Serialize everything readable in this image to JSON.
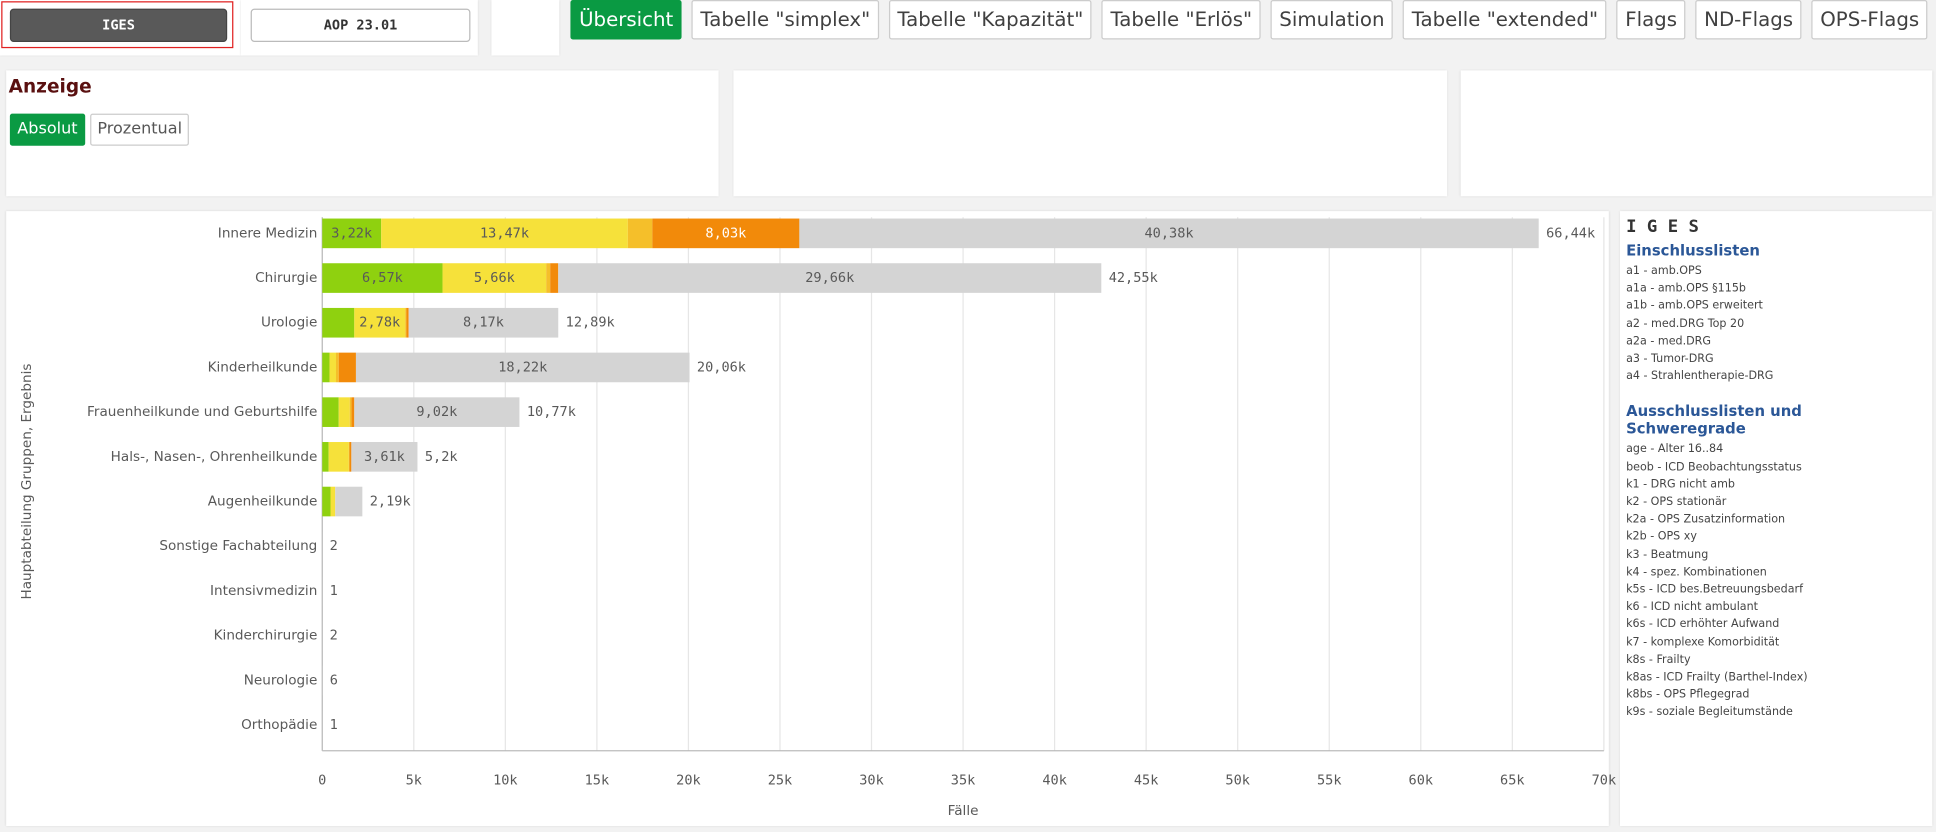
{
  "header": {
    "buttons": [
      "IGES",
      "AOP 23.01"
    ],
    "tabs": [
      "Übersicht",
      "Tabelle \"simplex\"",
      "Tabelle \"Kapazität\"",
      "Tabelle \"Erlös\"",
      "Simulation",
      "Tabelle \"extended\"",
      "Flags",
      "ND-Flags",
      "OPS-Flags"
    ]
  },
  "filter": {
    "title": "Anzeige",
    "options": [
      "Absolut",
      "Prozentual"
    ]
  },
  "chart_data": {
    "type": "stacked-bar-horizontal",
    "x_label": "Fälle",
    "y_label": "Hauptabteilung Gruppen, Ergebnis",
    "categories": [
      "Innere Medizin",
      "Chirurgie",
      "Urologie",
      "Kinderheilkunde",
      "Frauenheilkunde und Geburtshilfe",
      "Hals-, Nasen-, Ohrenheilkunde",
      "Augenheilkunde",
      "Sonstige Fachabteilung",
      "Intensivmedizin",
      "Kinderchirurgie",
      "Neurologie",
      "Orthopädie"
    ],
    "series": [
      {
        "color": "#8fd10f",
        "values": [
          3220,
          6570,
          1750,
          400,
          900,
          350,
          450,
          0,
          0,
          0,
          0,
          0
        ],
        "value_labels": [
          "3,22k",
          "6,57k",
          null,
          null,
          null,
          null,
          null,
          null,
          null,
          null,
          null,
          null
        ]
      },
      {
        "color": "#f6e13a",
        "values": [
          13470,
          5660,
          2780,
          350,
          600,
          1100,
          260,
          0,
          0,
          0,
          0,
          0
        ],
        "value_labels": [
          "13,47k",
          "5,66k",
          "2,78k",
          null,
          null,
          null,
          null,
          null,
          null,
          null,
          null,
          null
        ]
      },
      {
        "color": "#f5bf2a",
        "values": [
          1340,
          220,
          70,
          150,
          100,
          40,
          0,
          0,
          0,
          0,
          0,
          0
        ]
      },
      {
        "color": "#f28a0a",
        "values": [
          8030,
          440,
          120,
          940,
          150,
          100,
          0,
          0,
          0,
          0,
          0,
          0
        ],
        "value_labels": [
          "8,03k",
          null,
          null,
          null,
          null,
          null,
          null,
          null,
          null,
          null,
          null,
          null
        ]
      },
      {
        "color": "#d4d4d4",
        "values": [
          40380,
          29660,
          8170,
          18220,
          9020,
          3610,
          1480,
          2,
          1,
          2,
          6,
          1
        ],
        "value_labels": [
          "40,38k",
          "29,66k",
          "8,17k",
          "18,22k",
          "9,02k",
          "3,61k",
          null,
          null,
          null,
          null,
          null,
          null
        ]
      }
    ],
    "totals": {
      "values": [
        66440,
        42550,
        12890,
        20060,
        10770,
        5200,
        2190,
        2,
        1,
        2,
        6,
        1
      ],
      "value_labels": [
        "66,44k",
        "42,55k",
        "12,89k",
        "20,06k",
        "10,77k",
        "5,2k",
        "2,19k",
        "2",
        "1",
        "2",
        "6",
        "1"
      ]
    },
    "xlim": [
      0,
      70000
    ],
    "xticks": [
      0,
      {
        "value": 5000,
        "label": "5k"
      },
      {
        "value": 10000,
        "label": "10k"
      },
      {
        "value": 15000,
        "label": "15k"
      },
      {
        "value": 20000,
        "label": "20k"
      },
      {
        "value": 25000,
        "label": "25k"
      },
      {
        "value": 30000,
        "label": "30k"
      },
      {
        "value": 35000,
        "label": "35k"
      },
      {
        "value": 40000,
        "label": "40k"
      },
      {
        "value": 45000,
        "label": "45k"
      },
      {
        "value": 50000,
        "label": "50k"
      },
      {
        "value": 55000,
        "label": "55k"
      },
      {
        "value": 60000,
        "label": "60k"
      },
      {
        "value": 65000,
        "label": "65k"
      },
      {
        "value": 70000,
        "label": "70k"
      }
    ],
    "grid": true
  },
  "legend_panel": {
    "title": "I G E S",
    "sections": [
      {
        "heading": "Einschlusslisten",
        "items": [
          "a1 - amb.OPS",
          "a1a - amb.OPS §115b",
          "a1b - amb.OPS erweitert",
          "a2 - med.DRG Top 20",
          "a2a - med.DRG",
          "a3 - Tumor-DRG",
          "a4 - Strahlentherapie-DRG"
        ]
      },
      {
        "heading": "Ausschlusslisten und Schweregrade",
        "items": [
          "age - Alter 16..84",
          "beob - ICD Beobachtungsstatus",
          "k1 - DRG nicht amb",
          "k2 - OPS stationär",
          "k2a - OPS Zusatzinformation",
          "k2b - OPS xy",
          "k3 - Beatmung",
          "k4 - spez. Kombinationen",
          "k5s - ICD bes.Betreuungsbedarf",
          "k6 - ICD nicht ambulant",
          "k6s - ICD erhöhter Aufwand",
          "k7 - komplexe Komorbidität",
          "k8s - Frailty",
          "k8as - ICD Frailty (Barthel-Index)",
          "k8bs - OPS Pflegegrad",
          "k9s - soziale Begleitumstände"
        ]
      }
    ]
  }
}
